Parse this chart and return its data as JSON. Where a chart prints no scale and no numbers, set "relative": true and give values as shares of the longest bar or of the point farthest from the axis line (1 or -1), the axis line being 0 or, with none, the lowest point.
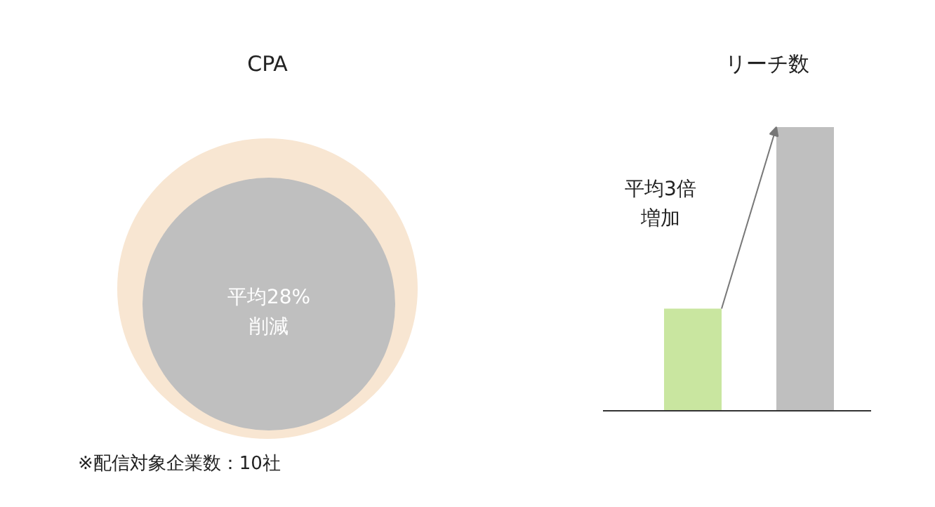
{
  "chart_data": [
    {
      "type": "other",
      "title": "CPA",
      "colors": [
        "#f8e6d2",
        "#bfbfbf"
      ],
      "annotations": [
        "平均28%削減",
        "※配信対象企業数：10社"
      ]
    },
    {
      "type": "bar",
      "title": "リーチ数",
      "categories": [
        null,
        null
      ],
      "values": [
        0.36,
        1
      ],
      "colors": [
        "#c9e6a0",
        "#bfbfbf"
      ],
      "relative": true,
      "annotations": [
        "平均3倍増加"
      ]
    }
  ]
}
